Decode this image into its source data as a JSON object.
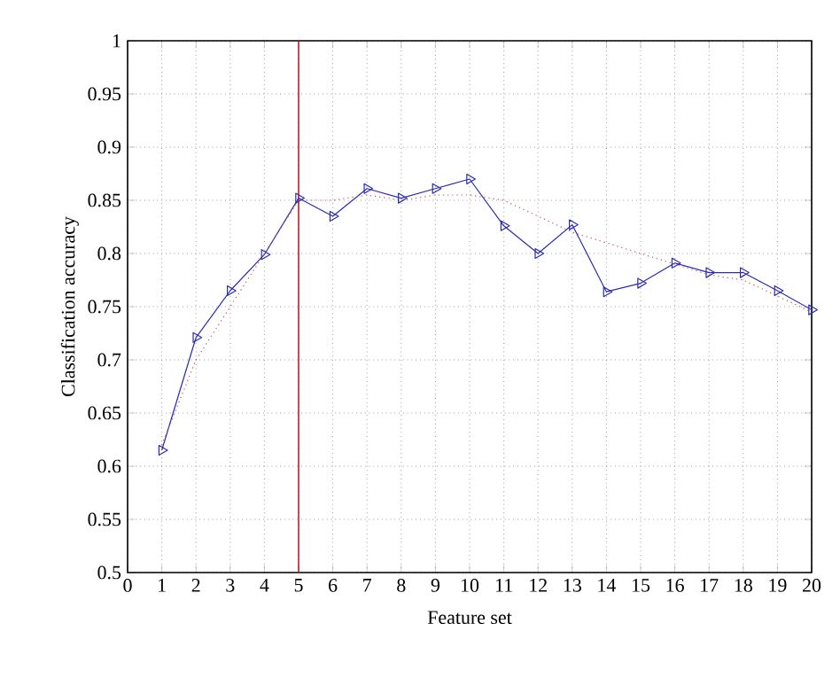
{
  "chart_data": {
    "type": "line",
    "xlabel": "Feature set",
    "ylabel": "Classification accuracy",
    "x": [
      1,
      2,
      3,
      4,
      5,
      6,
      7,
      8,
      9,
      10,
      11,
      12,
      13,
      14,
      15,
      16,
      17,
      18,
      19,
      20
    ],
    "series": [
      {
        "color": "#2b2bb0",
        "marker": "triangle",
        "line_style": "solid",
        "values": [
          0.615,
          0.721,
          0.765,
          0.799,
          0.852,
          0.835,
          0.861,
          0.852,
          0.861,
          0.87,
          0.826,
          0.8,
          0.827,
          0.764,
          0.772,
          0.791,
          0.782,
          0.782,
          0.765,
          0.747
        ]
      },
      {
        "type": "line",
        "color": "#c0504d",
        "marker": "none",
        "line_style": "dotted",
        "values": [
          0.62,
          0.7,
          0.75,
          0.8,
          0.85,
          0.85,
          0.855,
          0.85,
          0.855,
          0.855,
          0.85,
          0.835,
          0.82,
          0.81,
          0.8,
          0.79,
          0.78,
          0.775,
          0.76,
          0.745
        ]
      }
    ],
    "xlim": [
      0,
      20
    ],
    "ylim": [
      0.5,
      1
    ],
    "xticks": [
      0,
      1,
      2,
      3,
      4,
      5,
      6,
      7,
      8,
      9,
      10,
      11,
      12,
      13,
      14,
      15,
      16,
      17,
      18,
      19,
      20
    ],
    "yticks": [
      0.5,
      0.55,
      0.6,
      0.65,
      0.7,
      0.75,
      0.8,
      0.85,
      0.9,
      0.95,
      1
    ],
    "ref_lines": [
      {
        "axis": "x",
        "value": 5,
        "color": "#c0202a"
      }
    ],
    "grid": true
  }
}
